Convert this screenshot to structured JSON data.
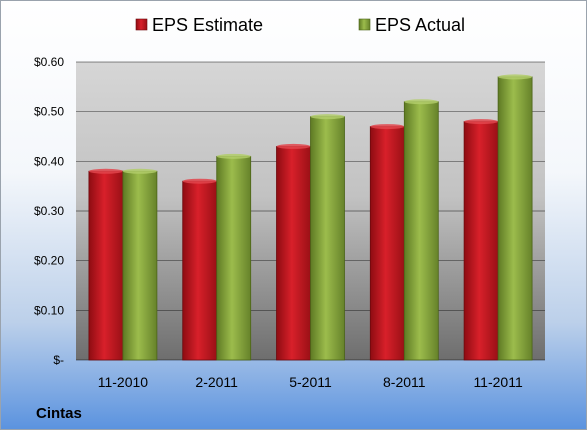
{
  "chart_data": {
    "type": "bar",
    "categories": [
      "11-2010",
      "2-2011",
      "5-2011",
      "8-2011",
      "11-2011"
    ],
    "series": [
      {
        "name": "EPS Estimate",
        "color": "#c8141e",
        "values": [
          0.38,
          0.36,
          0.43,
          0.47,
          0.48
        ]
      },
      {
        "name": "EPS Actual",
        "color": "#8aaa3c",
        "values": [
          0.38,
          0.41,
          0.49,
          0.52,
          0.57
        ]
      }
    ],
    "yticks": [
      {
        "value": 0,
        "label": "$-"
      },
      {
        "value": 0.1,
        "label": "$0.10"
      },
      {
        "value": 0.2,
        "label": "$0.20"
      },
      {
        "value": 0.3,
        "label": "$0.30"
      },
      {
        "value": 0.4,
        "label": "$0.40"
      },
      {
        "value": 0.5,
        "label": "$0.50"
      },
      {
        "value": 0.6,
        "label": "$0.60"
      }
    ],
    "ylim": [
      0,
      0.6
    ],
    "grid": true,
    "legend": "top",
    "company": "Cintas"
  }
}
